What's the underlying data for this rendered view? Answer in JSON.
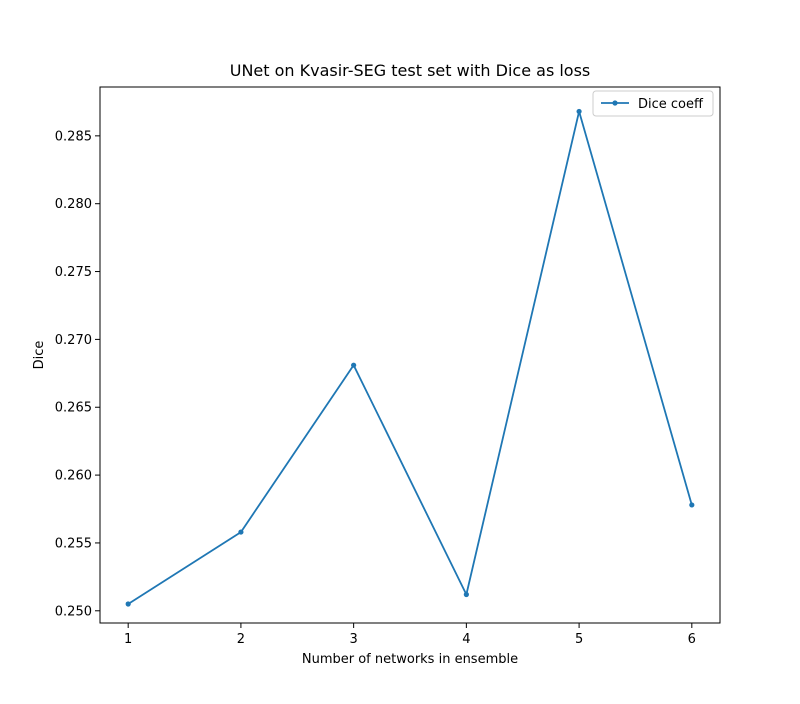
{
  "chart_data": {
    "type": "line",
    "title": "UNet on Kvasir-SEG test set with Dice as loss",
    "xlabel": "Number of networks in ensemble",
    "ylabel": "Dice",
    "x": [
      1,
      2,
      3,
      4,
      5,
      6
    ],
    "series": [
      {
        "name": "Dice coeff",
        "values": [
          0.2505,
          0.2558,
          0.2681,
          0.2512,
          0.2868,
          0.2578
        ],
        "color": "#1f77b4",
        "marker": "dot"
      }
    ],
    "xticks": [
      "1",
      "2",
      "3",
      "4",
      "5",
      "6"
    ],
    "yticks": [
      "0.250",
      "0.255",
      "0.260",
      "0.265",
      "0.270",
      "0.275",
      "0.280",
      "0.285"
    ],
    "xlim": [
      0.75,
      6.25
    ],
    "ylim": [
      0.2491,
      0.2886
    ],
    "grid": false,
    "legend_position": "top-right"
  }
}
